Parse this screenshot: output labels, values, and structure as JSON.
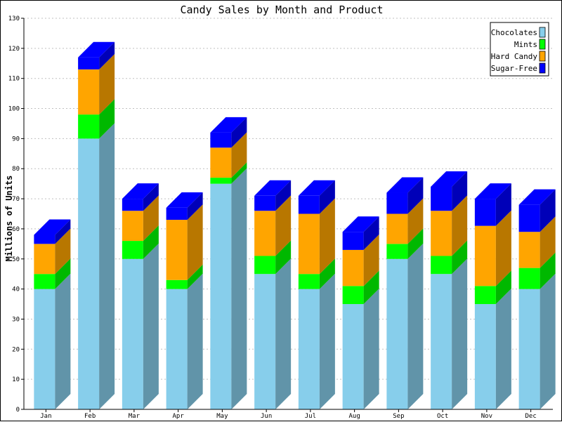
{
  "chart_data": {
    "type": "bar",
    "stacked": true,
    "three_d": true,
    "title": "Candy Sales by Month and Product",
    "xlabel": "",
    "ylabel": "Millions of Units",
    "ylim": [
      0,
      130
    ],
    "yticks": [
      0,
      10,
      20,
      30,
      40,
      50,
      60,
      70,
      80,
      90,
      100,
      110,
      120,
      130
    ],
    "grid": true,
    "legend_position": "top-right",
    "categories": [
      "Jan",
      "Feb",
      "Mar",
      "Apr",
      "May",
      "Jun",
      "Jul",
      "Aug",
      "Sep",
      "Oct",
      "Nov",
      "Dec"
    ],
    "series": [
      {
        "name": "Chocolates",
        "color": "#87ceeb",
        "values": [
          40,
          90,
          50,
          40,
          75,
          45,
          40,
          35,
          50,
          45,
          35,
          40
        ]
      },
      {
        "name": "Mints",
        "color": "#00ff00",
        "values": [
          5,
          8,
          6,
          3,
          2,
          6,
          5,
          6,
          5,
          6,
          6,
          7
        ]
      },
      {
        "name": "Hard Candy",
        "color": "#ffa500",
        "values": [
          10,
          15,
          10,
          20,
          10,
          15,
          20,
          12,
          10,
          15,
          20,
          12
        ]
      },
      {
        "name": "Sugar-Free",
        "color": "#0000ff",
        "values": [
          3,
          4,
          4,
          4,
          5,
          5,
          6,
          6,
          7,
          8,
          9,
          9
        ]
      }
    ]
  }
}
